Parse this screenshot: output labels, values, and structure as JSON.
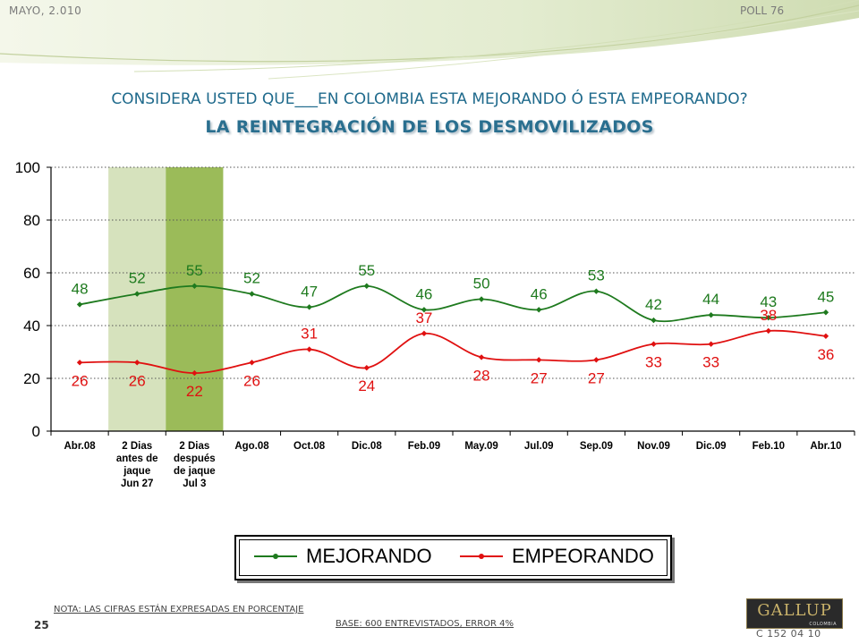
{
  "header": {
    "date": "MAYO, 2.010",
    "poll": "POLL 76"
  },
  "question": "CONSIDERA USTED QUE___EN COLOMBIA ESTA MEJORANDO Ó ESTA EMPEORANDO?",
  "subject": "LA REINTEGRACIÓN DE LOS DESMOVILIZADOS",
  "chart_data": {
    "type": "line",
    "categories": [
      [
        "Abr.08"
      ],
      [
        "2 Dias",
        "antes de",
        "jaque",
        "Jun 27"
      ],
      [
        "2 Dias",
        "después",
        "de jaque",
        "Jul 3"
      ],
      [
        "Ago.08"
      ],
      [
        "Oct.08"
      ],
      [
        "Dic.08"
      ],
      [
        "Feb.09"
      ],
      [
        "May.09"
      ],
      [
        "Jul.09"
      ],
      [
        "Sep.09"
      ],
      [
        "Nov.09"
      ],
      [
        "Dic.09"
      ],
      [
        "Feb.10"
      ],
      [
        "Abr.10"
      ]
    ],
    "series": [
      {
        "name": "MEJORANDO",
        "color": "#1e7a1e",
        "values": [
          48,
          52,
          55,
          52,
          47,
          55,
          46,
          50,
          46,
          53,
          42,
          44,
          43,
          45
        ]
      },
      {
        "name": "EMPEORANDO",
        "color": "#e01010",
        "values": [
          26,
          26,
          22,
          26,
          31,
          24,
          37,
          28,
          27,
          27,
          33,
          33,
          38,
          36
        ]
      }
    ],
    "label_position": {
      "MEJORANDO": [
        "above",
        "above",
        "above",
        "above",
        "above",
        "above",
        "above",
        "above",
        "above",
        "above",
        "above",
        "above",
        "above",
        "above"
      ],
      "EMPEORANDO": [
        "below",
        "below",
        "below",
        "below",
        "above",
        "below",
        "above",
        "below",
        "below",
        "below",
        "below",
        "below",
        "above",
        "below"
      ]
    },
    "highlight_bands": [
      {
        "category_index": 1,
        "color": "#d6e2bd"
      },
      {
        "category_index": 2,
        "color": "#9bbb59"
      }
    ],
    "ylim": [
      0,
      100
    ],
    "yticks": [
      0,
      20,
      40,
      60,
      80,
      100
    ],
    "grid": true
  },
  "legend": {
    "items": [
      "MEJORANDO",
      "EMPEORANDO"
    ]
  },
  "notes": {
    "nota": "NOTA: LAS CIFRAS ESTÁN EXPRESADAS EN PORCENTAJE",
    "base": "BASE: 600 ENTREVISTADOS, ERROR 4%"
  },
  "page_number": "25",
  "code": "C 152 04 10",
  "logo": {
    "text": "GALLUP",
    "sub": "COLOMBIA"
  }
}
